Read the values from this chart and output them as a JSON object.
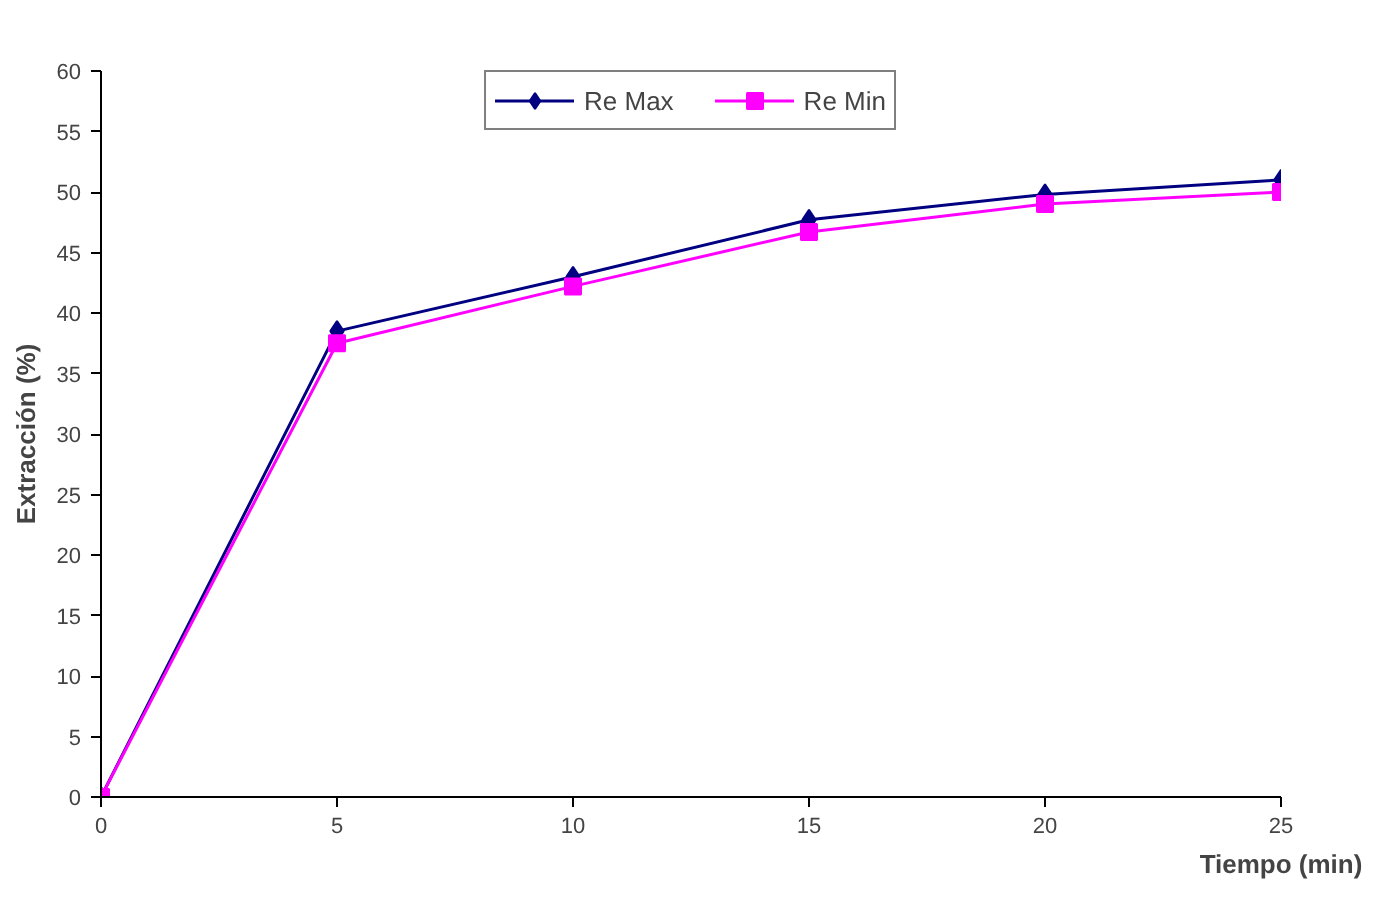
{
  "chart_data": {
    "type": "line",
    "xlabel": "Tiempo (min)",
    "ylabel": "Extracción (%)",
    "x": [
      0,
      5,
      10,
      15,
      20,
      25
    ],
    "series": [
      {
        "name": "Re Max",
        "color": "#000080",
        "values": [
          0,
          38.5,
          43,
          47.7,
          49.8,
          51
        ],
        "marker": "diamond"
      },
      {
        "name": "Re Min",
        "color": "#ff00ff",
        "values": [
          0,
          37.5,
          42.2,
          46.7,
          49,
          50
        ],
        "marker": "square"
      }
    ],
    "xlim": [
      0,
      25
    ],
    "ylim": [
      0,
      60
    ],
    "xticks": [
      0,
      5,
      10,
      15,
      20,
      25
    ],
    "yticks": [
      0,
      5,
      10,
      15,
      20,
      25,
      30,
      35,
      40,
      45,
      50,
      55,
      60
    ],
    "grid": false,
    "legend": "top",
    "line_style": "solid"
  }
}
